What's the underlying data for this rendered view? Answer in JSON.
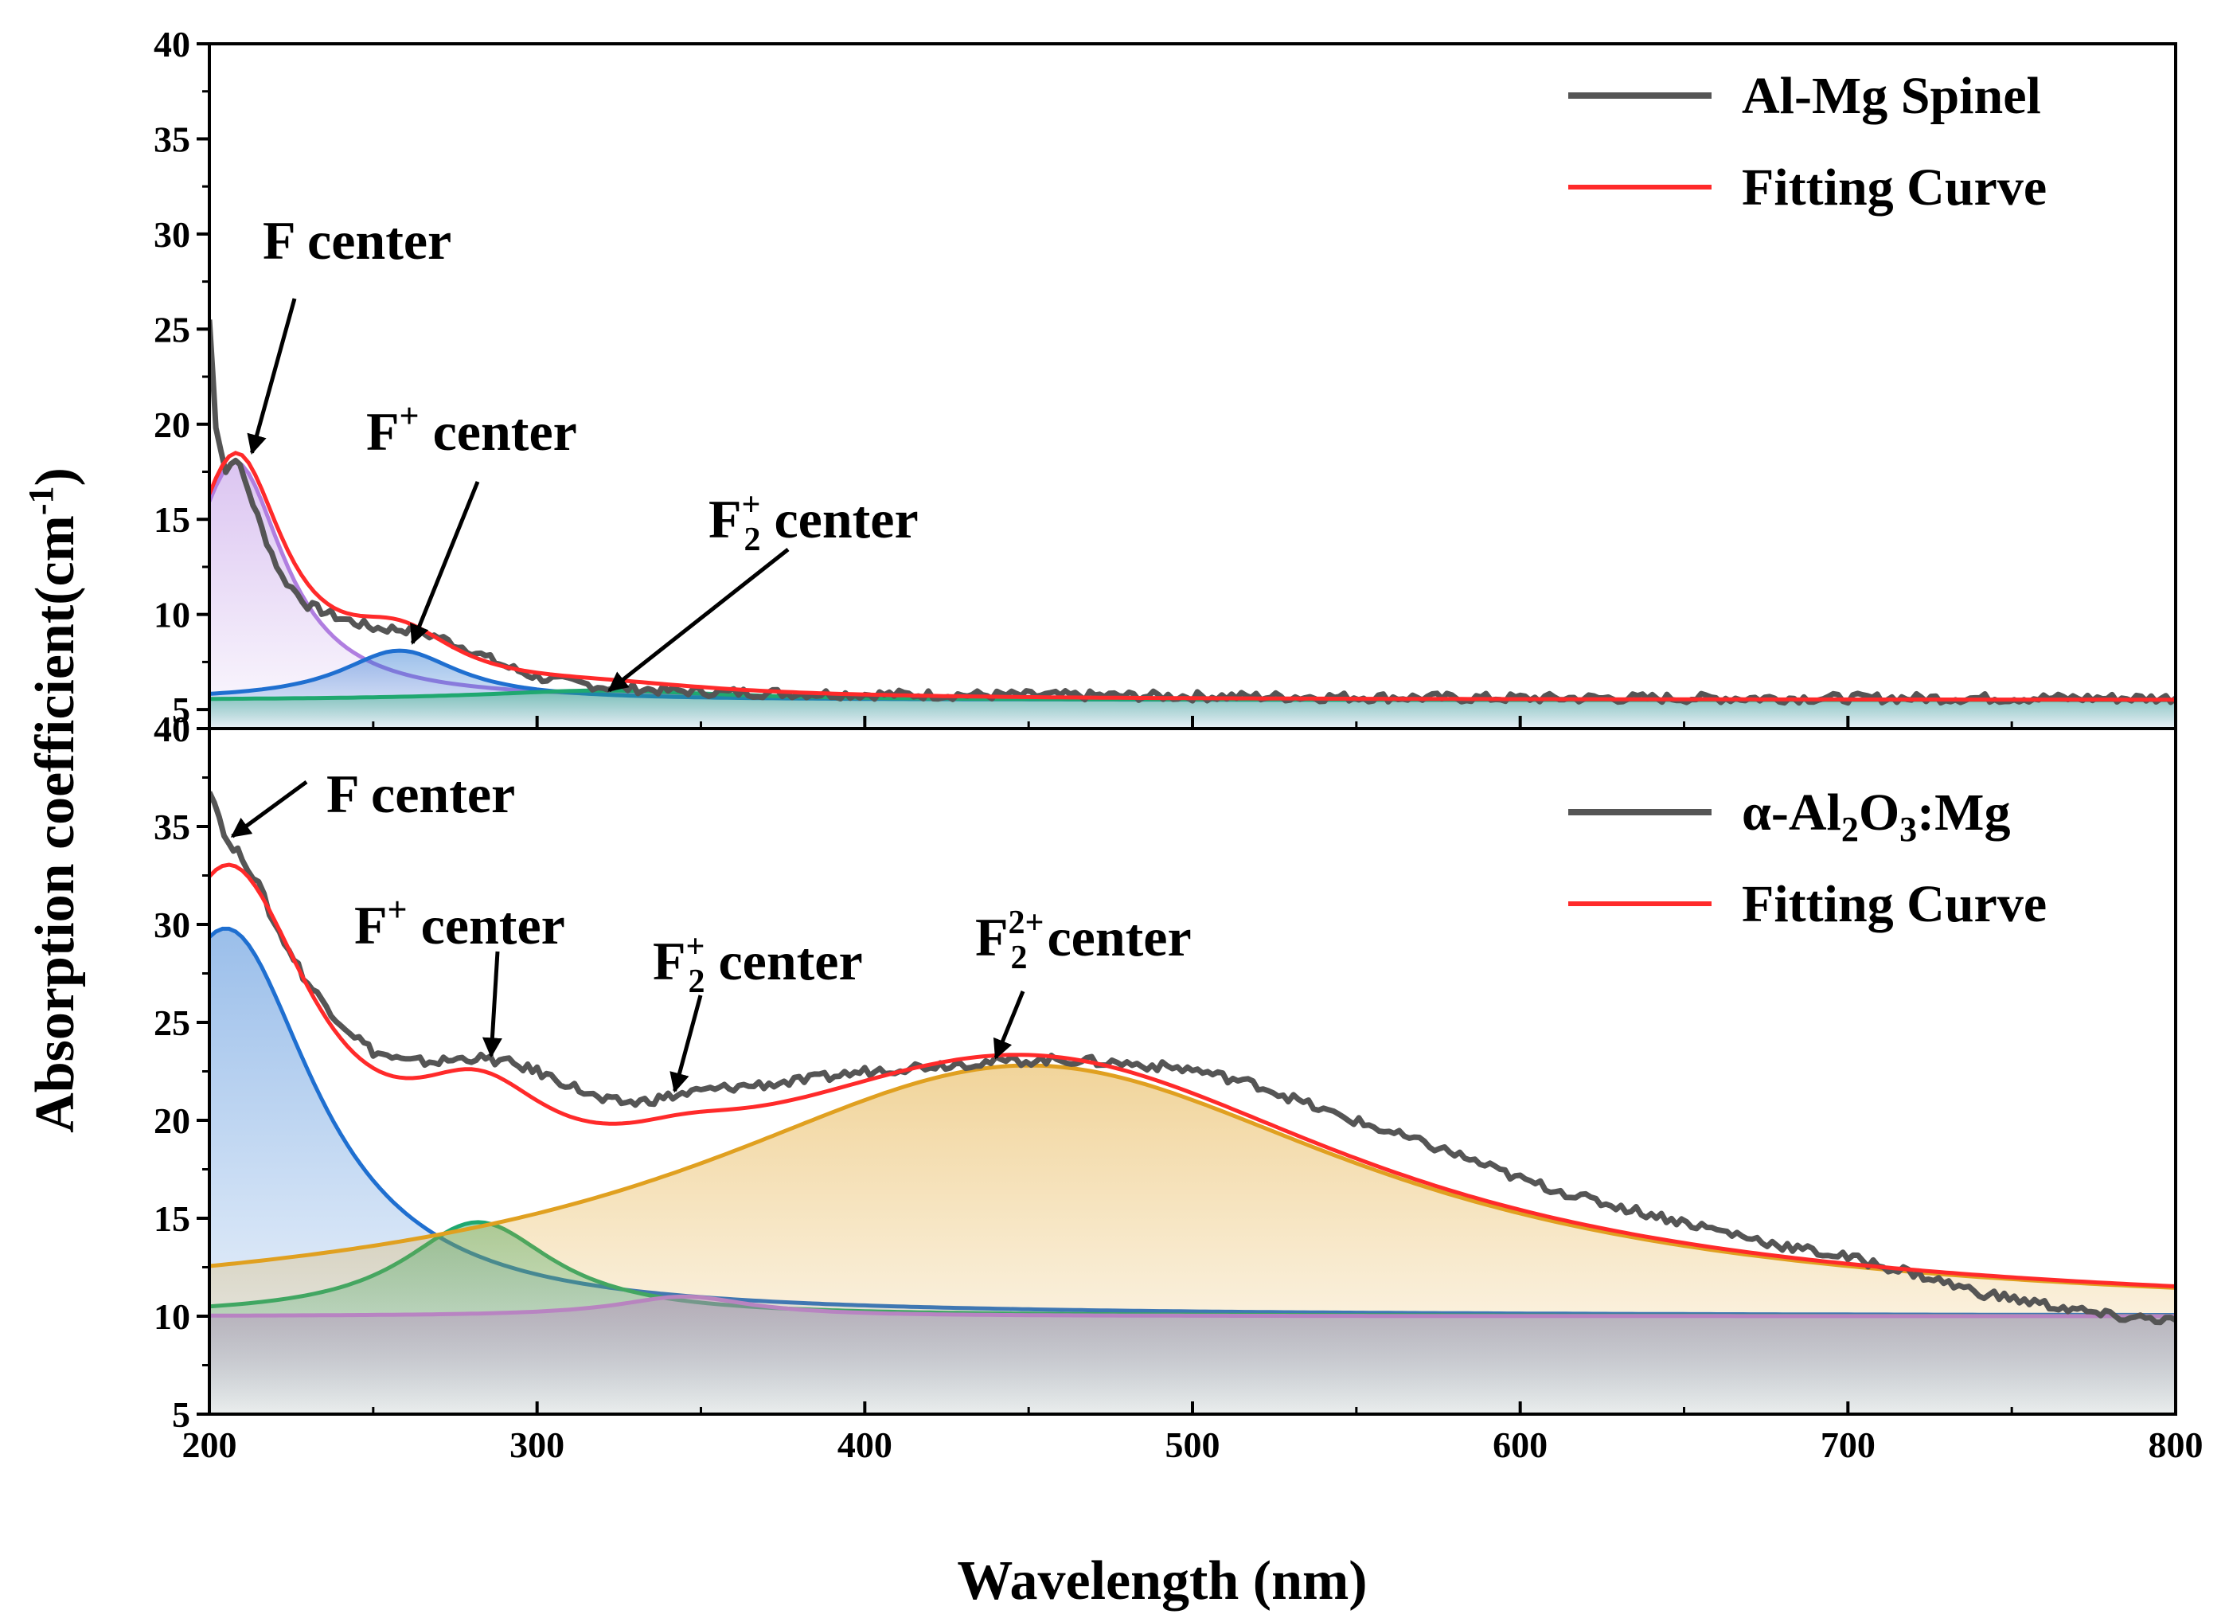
{
  "chart_data": {
    "type": "line",
    "xlabel": "Wavelength (nm)",
    "ylabel": "Absorption coefficient(cm",
    "ylabel_sup": "-1",
    "ylabel_close": ")",
    "xlim": [
      200,
      800
    ],
    "xticks": [
      200,
      300,
      400,
      500,
      600,
      700,
      800
    ],
    "panels": [
      {
        "id": "top",
        "ylim": [
          4,
          40
        ],
        "yticks": [
          5,
          10,
          15,
          20,
          25,
          30,
          35,
          40
        ],
        "legend": [
          {
            "label": "Al-Mg Spinel",
            "color": "#555555"
          },
          {
            "label": "Fitting Curve",
            "color": "#ff2a2a"
          }
        ],
        "measured": {
          "name": "Al-Mg Spinel",
          "color": "#555555",
          "x": [
            200,
            202,
            205,
            208,
            212,
            216,
            222,
            230,
            240,
            250,
            260,
            270,
            280,
            290,
            300,
            320,
            340,
            360,
            400,
            500,
            600,
            700,
            800
          ],
          "y": [
            25.5,
            20.0,
            17.5,
            18.3,
            16.5,
            14.5,
            12.0,
            10.5,
            9.8,
            9.3,
            9.2,
            8.8,
            8.1,
            7.3,
            6.7,
            6.2,
            6.0,
            5.9,
            5.8,
            5.7,
            5.6,
            5.6,
            5.6
          ]
        },
        "fit": {
          "name": "Fitting Curve",
          "color": "#ff2a2a",
          "baseline": 5.5
        },
        "components": [
          {
            "name": "F center",
            "color": "#b07ee0",
            "center": 208,
            "width": 18,
            "amplitude": 12.5
          },
          {
            "name": "F+ center",
            "color": "#1f6fd0",
            "center": 258,
            "width": 22,
            "amplitude": 2.6
          },
          {
            "name": "F2+ center",
            "color": "#1fa870",
            "center": 320,
            "width": 45,
            "amplitude": 0.5
          }
        ],
        "annotations": [
          {
            "text": "F center",
            "target": [
              213,
              18.5
            ]
          },
          {
            "text": "F",
            "sup": "+",
            "tail": " center",
            "target": [
              262,
              8.5
            ]
          },
          {
            "text": "F",
            "sub": "2",
            "sup": "+",
            "tail": " center",
            "target": [
              322,
              6.0
            ]
          }
        ]
      },
      {
        "id": "bottom",
        "ylim": [
          5,
          40
        ],
        "yticks": [
          5,
          10,
          15,
          20,
          25,
          30,
          35,
          40
        ],
        "legend": [
          {
            "label": "α-Al",
            "sub1": "2",
            "mid": "O",
            "sub2": "3",
            "end": ":Mg",
            "color": "#555555"
          },
          {
            "label": "Fitting Curve",
            "color": "#ff2a2a"
          }
        ],
        "measured": {
          "name": "α-Al2O3:Mg",
          "color": "#555555",
          "x": [
            200,
            203,
            206,
            210,
            215,
            220,
            230,
            240,
            250,
            260,
            270,
            280,
            290,
            300,
            310,
            320,
            330,
            340,
            350,
            360,
            380,
            400,
            420,
            440,
            460,
            480,
            500,
            520,
            540,
            560,
            580,
            600,
            620,
            640,
            660,
            680,
            700,
            720,
            740,
            760,
            770,
            780,
            800
          ],
          "y": [
            37.0,
            35.5,
            34.0,
            33.5,
            32.0,
            30.0,
            27.0,
            25.0,
            23.5,
            23.0,
            23.0,
            23.2,
            23.0,
            22.5,
            21.8,
            21.0,
            20.9,
            21.2,
            21.5,
            21.7,
            22.0,
            22.5,
            22.8,
            23.0,
            23.1,
            22.9,
            22.6,
            21.8,
            20.5,
            19.4,
            18.3,
            17.0,
            16.0,
            15.2,
            14.4,
            13.6,
            13.0,
            12.2,
            11.2,
            10.6,
            10.3,
            10.0,
            9.8
          ]
        },
        "fit": {
          "name": "Fitting Curve",
          "color": "#ff2a2a",
          "baseline": 10.0
        },
        "components": [
          {
            "name": "F center",
            "color": "#1f6fd0",
            "center": 205,
            "width": 33,
            "amplitude": 19.8
          },
          {
            "name": "F+ center",
            "color": "#1fa870",
            "center": 282,
            "width": 28,
            "amplitude": 4.8
          },
          {
            "name": "F2+ center",
            "color": "#b07ee0",
            "center": 345,
            "width": 25,
            "amplitude": 1.0
          },
          {
            "name": "F2 2+ center",
            "color": "#e0a020",
            "center": 450,
            "width": 125,
            "amplitude": 12.8
          }
        ],
        "annotations": [
          {
            "text": "F center",
            "target": [
              207,
              34.5
            ]
          },
          {
            "text": "F",
            "sup": "+",
            "tail": " center",
            "target": [
              286,
              23.3
            ]
          },
          {
            "text": "F",
            "sub": "2",
            "sup": "+",
            "tail": " center",
            "target": [
              342,
              21.5
            ]
          },
          {
            "text": "F",
            "sub": "2",
            "sup": "2+",
            "tail": " center",
            "target": [
              440,
              23.2
            ]
          }
        ]
      }
    ]
  }
}
